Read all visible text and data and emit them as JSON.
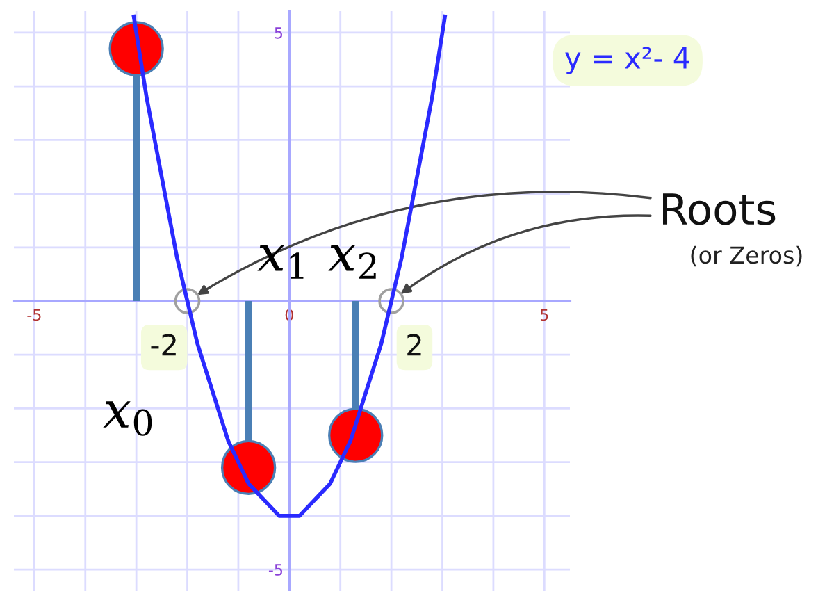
{
  "chart_data": {
    "type": "line",
    "xlim": [
      -5.4,
      5.5
    ],
    "ylim": [
      -5.4,
      5.4
    ],
    "xticks": [
      -5,
      {
        "value": -4,
        "label": null
      },
      {
        "value": -3,
        "label": null
      },
      {
        "value": -2,
        "label": null
      },
      {
        "value": -1,
        "label": null
      },
      0,
      {
        "value": 1,
        "label": null
      },
      {
        "value": 2,
        "label": null
      },
      {
        "value": 3,
        "label": null
      },
      {
        "value": 4,
        "label": null
      },
      5
    ],
    "yticks": [
      -5,
      {
        "value": -4,
        "label": null
      },
      {
        "value": -3,
        "label": null
      },
      {
        "value": -2,
        "label": null
      },
      {
        "value": -1,
        "label": null
      },
      {
        "value": 0,
        "label": null
      },
      {
        "value": 1,
        "label": null
      },
      {
        "value": 2,
        "label": null
      },
      {
        "value": 3,
        "label": null
      },
      {
        "value": 4,
        "label": null
      },
      5
    ],
    "grid": true,
    "series": [
      {
        "color": "#2a2aff",
        "x": [
          -3.05,
          -2.8,
          -2.6,
          -2.4,
          -2.2,
          -2,
          -1.8,
          -1.6,
          -1.4,
          -1.2,
          -1,
          -0.8,
          -0.6,
          -0.4,
          -0.2,
          0,
          0.2,
          0.4,
          0.6,
          0.8,
          1,
          1.2,
          1.4,
          1.6,
          1.8,
          2,
          2.2,
          2.4,
          2.6,
          2.8,
          3.05
        ],
        "values": [
          5.3,
          3.8,
          2.8,
          1.8,
          0.8,
          0,
          -0.8,
          -1.4,
          -2.0,
          -2.6,
          -3,
          -3.4,
          -3.6,
          -3.8,
          -4.0,
          -4,
          -4.0,
          -3.8,
          -3.6,
          -3.4,
          -3,
          -2.6,
          -2.0,
          -1.4,
          -0.8,
          0,
          0.8,
          1.8,
          2.8,
          3.8,
          5.3
        ]
      },
      {
        "type": "scatter",
        "marker": "circle",
        "color": "#a0a0a0",
        "x": [
          -2,
          2
        ],
        "values": [
          0,
          0
        ]
      },
      {
        "type": "lollipop",
        "color": "#ff0000",
        "x": [
          -3.0,
          -0.8,
          1.3
        ],
        "values": [
          4.7,
          -3.1,
          -2.5
        ]
      }
    ],
    "annotations": [
      "y = x²- 4",
      "Roots",
      "(or Zeros)",
      {
        "text": "-2",
        "x": -2,
        "y": 0
      },
      {
        "text": "2",
        "x": 2,
        "y": 0
      },
      "x$_{0}$",
      "x$_{1}$",
      "x$_{2}$"
    ]
  }
}
